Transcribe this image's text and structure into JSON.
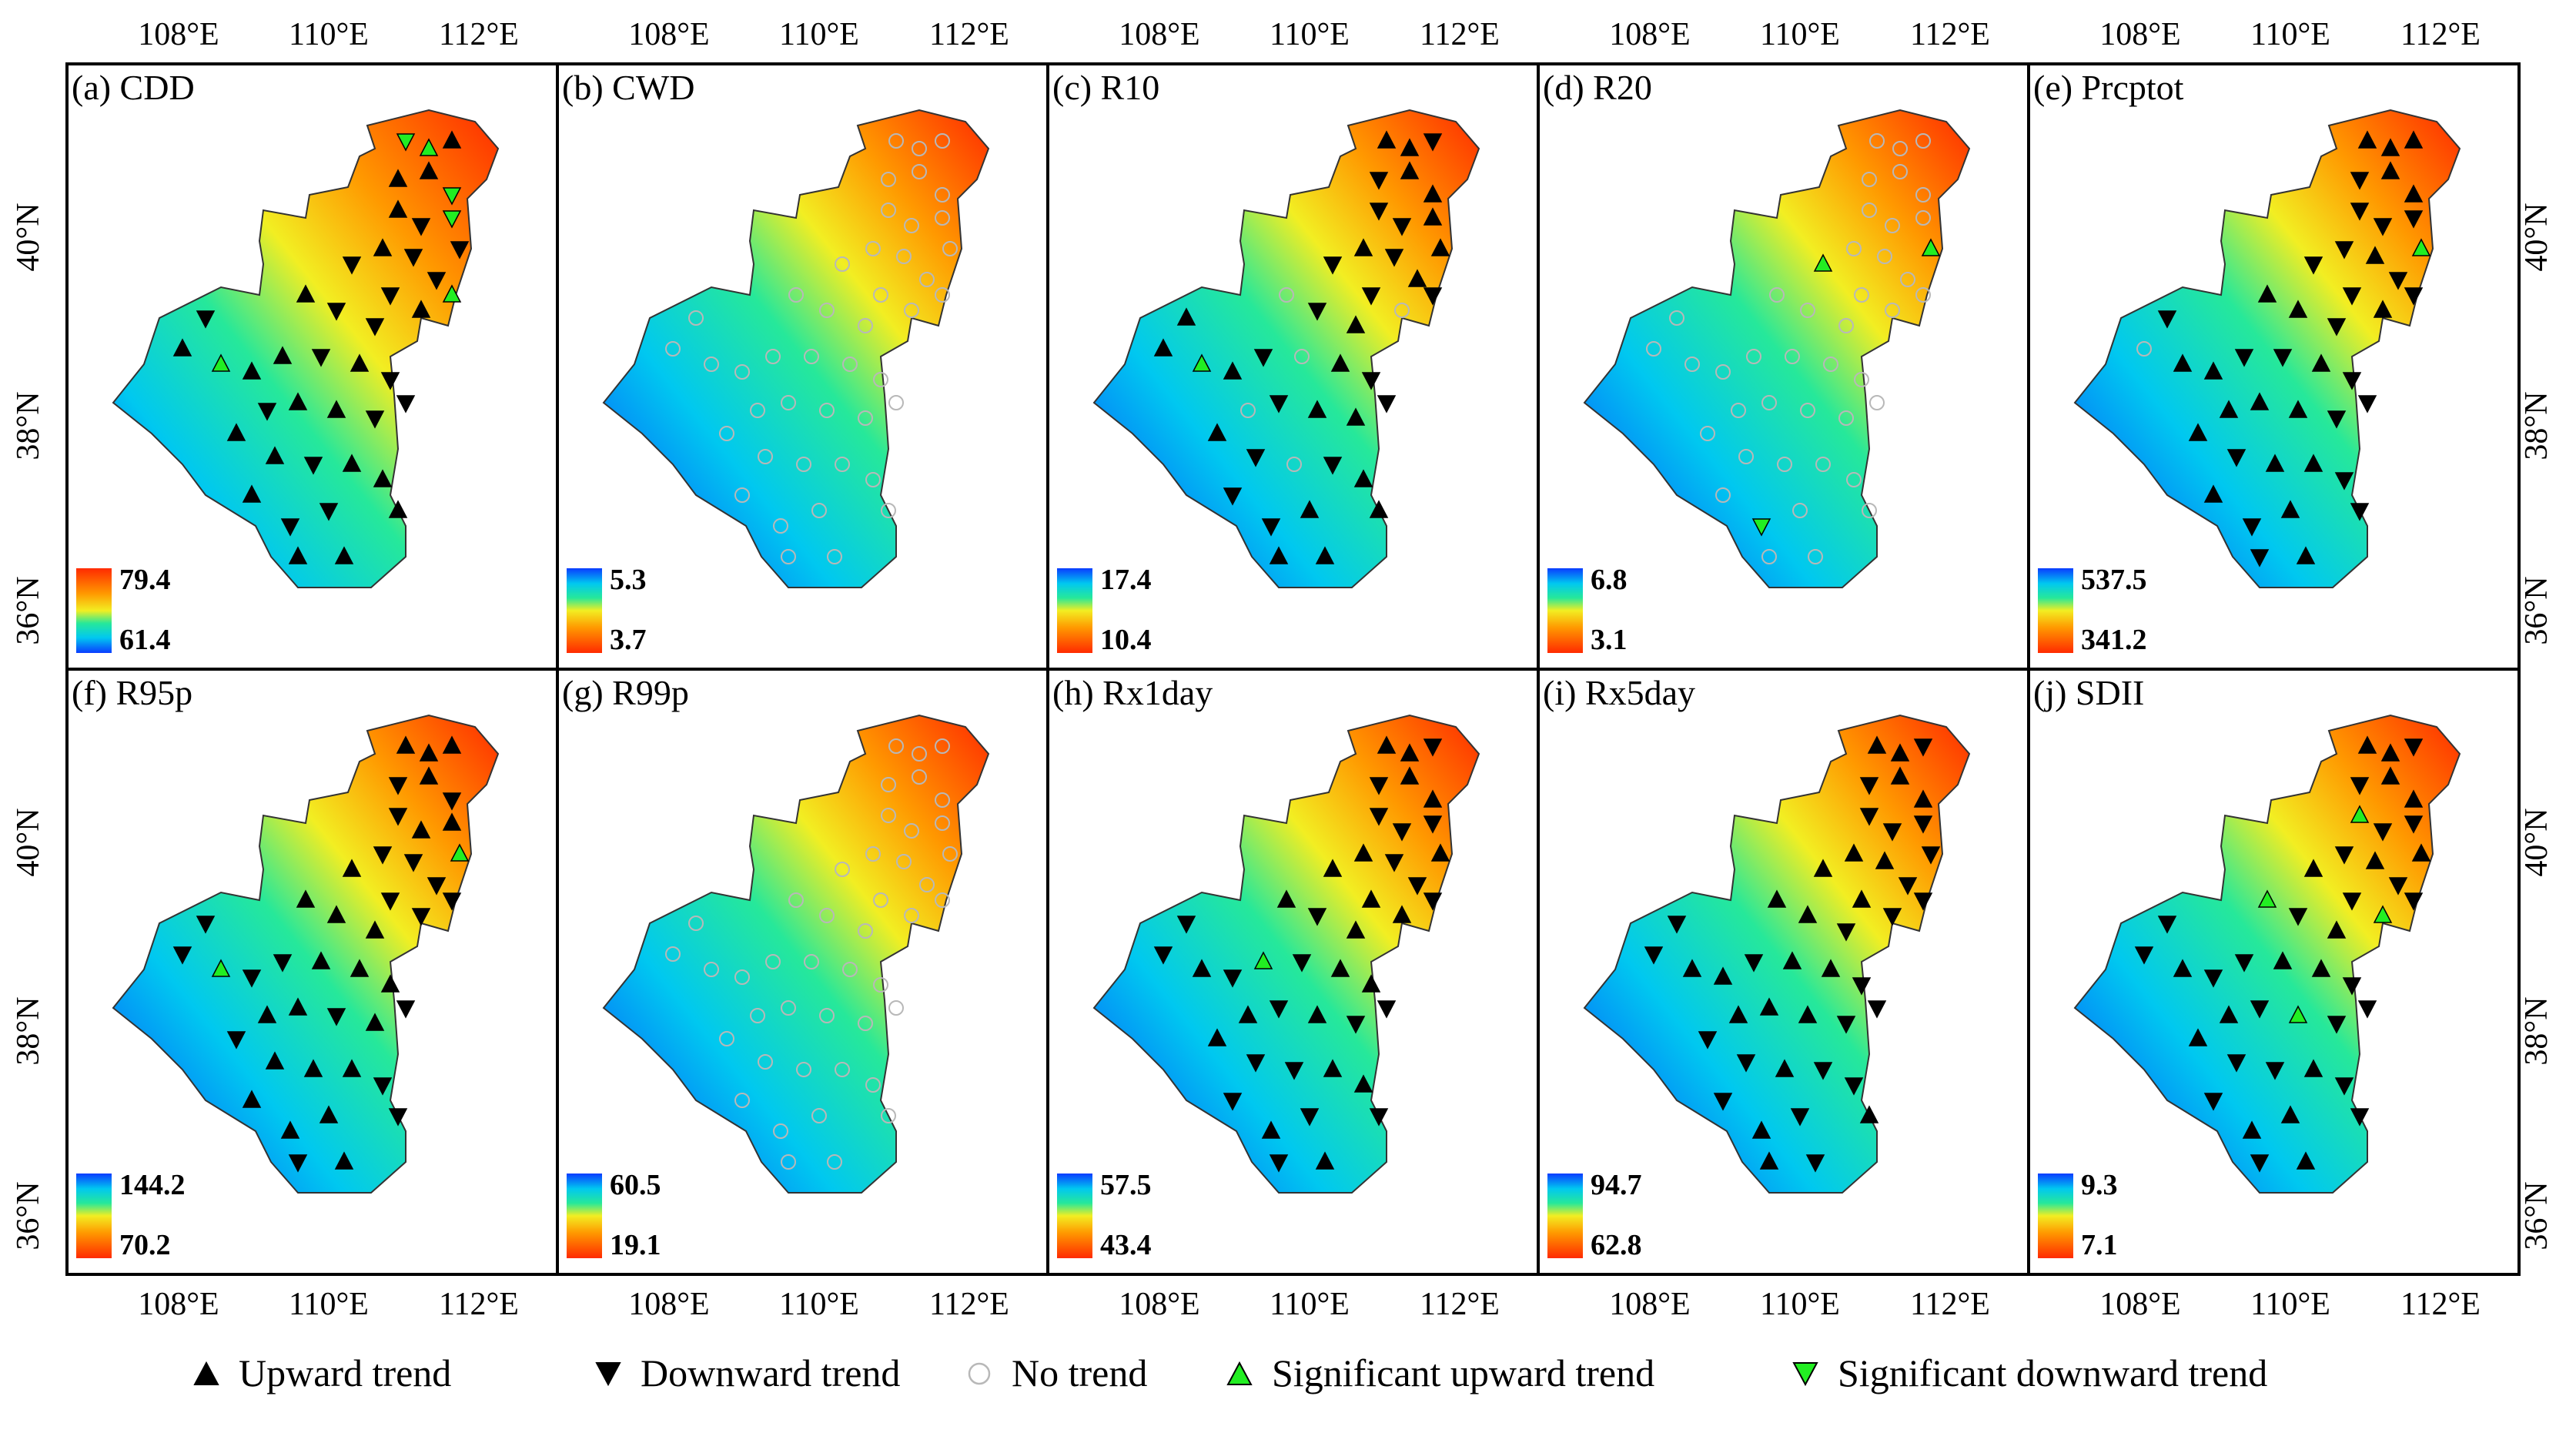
{
  "figure": {
    "x_ticks": [
      "108°E",
      "110°E",
      "112°E"
    ],
    "y_ticks": [
      "40°N",
      "38°N",
      "36°N"
    ]
  },
  "panels": [
    {
      "label": "(a) CDD",
      "max": "79.4",
      "min": "61.4",
      "invert": false
    },
    {
      "label": "(b) CWD",
      "max": "5.3",
      "min": "3.7",
      "invert": true
    },
    {
      "label": "(c) R10",
      "max": "17.4",
      "min": "10.4",
      "invert": true
    },
    {
      "label": "(d) R20",
      "max": "6.8",
      "min": "3.1",
      "invert": true
    },
    {
      "label": "(e) Prcptot",
      "max": "537.5",
      "min": "341.2",
      "invert": true
    },
    {
      "label": "(f) R95p",
      "max": "144.2",
      "min": "70.2",
      "invert": true
    },
    {
      "label": "(g) R99p",
      "max": "60.5",
      "min": "19.1",
      "invert": true
    },
    {
      "label": "(h) Rx1day",
      "max": "57.5",
      "min": "43.4",
      "invert": true
    },
    {
      "label": "(i) Rx5day",
      "max": "94.7",
      "min": "62.8",
      "invert": true
    },
    {
      "label": "(j) SDII",
      "max": "9.3",
      "min": "7.1",
      "invert": true
    }
  ],
  "legend": [
    {
      "symbol": "up",
      "label": "Upward trend"
    },
    {
      "symbol": "down",
      "label": "Downward trend"
    },
    {
      "symbol": "none",
      "label": "No trend"
    },
    {
      "symbol": "sig-up",
      "label": "Significant upward trend"
    },
    {
      "symbol": "sig-down",
      "label": "Significant downward trend"
    }
  ],
  "colors": {
    "high": "#ff2a00",
    "orange": "#ff9900",
    "yellow": "#f2ee22",
    "green": "#26e89a",
    "cyan": "#00c8f0",
    "blue": "#0a3cff",
    "sig_green": "#22ee22",
    "none_circle": "#b8b8b8"
  }
}
